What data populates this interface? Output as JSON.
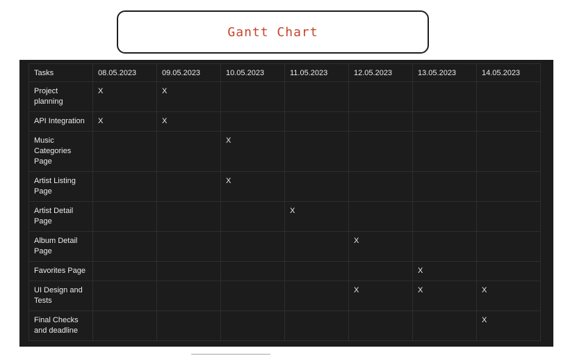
{
  "title": "Gantt Chart",
  "table": {
    "header": [
      "Tasks",
      "08.05.2023",
      "09.05.2023",
      "10.05.2023",
      "11.05.2023",
      "12.05.2023",
      "13.05.2023",
      "14.05.2023"
    ],
    "rows": [
      {
        "task": "Project planning",
        "cells": [
          "X",
          "X",
          "",
          "",
          "",
          "",
          ""
        ]
      },
      {
        "task": "API Integration",
        "cells": [
          "X",
          "X",
          "",
          "",
          "",
          "",
          ""
        ]
      },
      {
        "task": "Music Categories Page",
        "cells": [
          "",
          "",
          "X",
          "",
          "",
          "",
          ""
        ]
      },
      {
        "task": "Artist Listing Page",
        "cells": [
          "",
          "",
          "X",
          "",
          "",
          "",
          ""
        ]
      },
      {
        "task": "Artist Detail Page",
        "cells": [
          "",
          "",
          "",
          "X",
          "",
          "",
          ""
        ]
      },
      {
        "task": "Album Detail Page",
        "cells": [
          "",
          "",
          "",
          "",
          "X",
          "",
          ""
        ]
      },
      {
        "task": "Favorites Page",
        "cells": [
          "",
          "",
          "",
          "",
          "",
          "X",
          ""
        ]
      },
      {
        "task": "UI Design and Tests",
        "cells": [
          "",
          "",
          "",
          "",
          "X",
          "X",
          "X"
        ]
      },
      {
        "task": "Final Checks and deadline",
        "cells": [
          "",
          "",
          "",
          "",
          "",
          "",
          "X"
        ]
      }
    ]
  }
}
